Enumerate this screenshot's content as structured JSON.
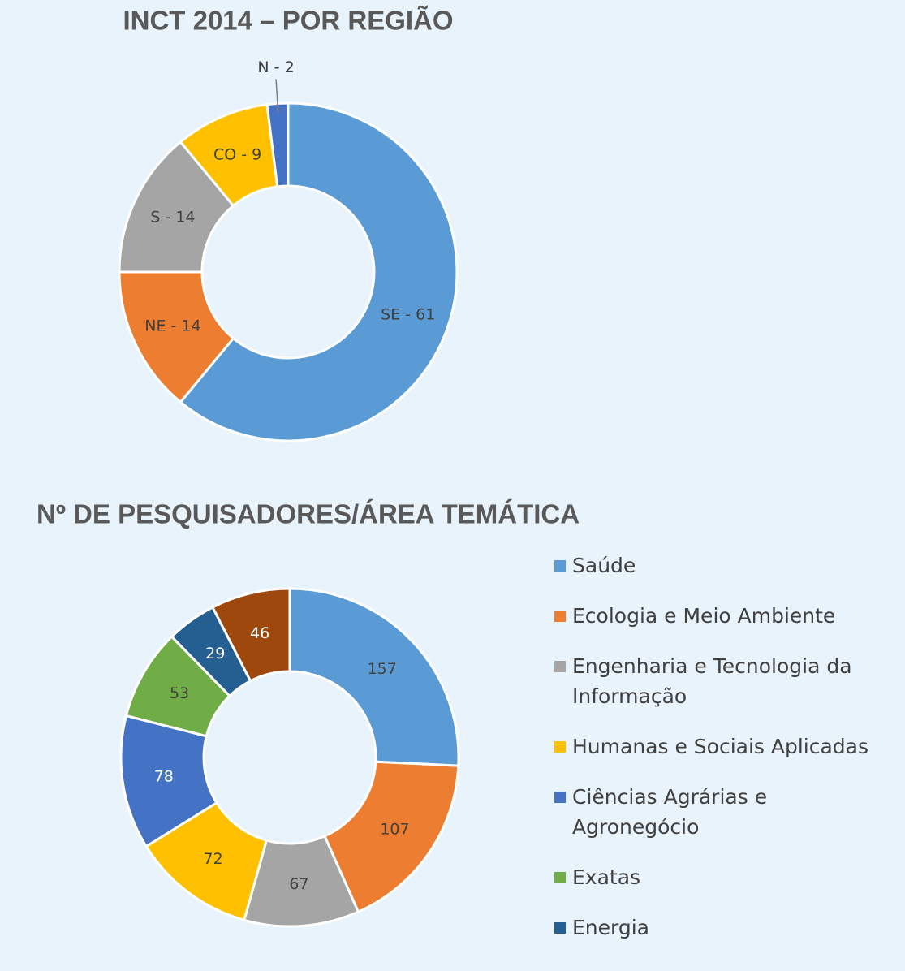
{
  "chart_data": [
    {
      "type": "donut",
      "title": "INCT 2014 – POR REGIÃO",
      "values": [
        61,
        14,
        14,
        9,
        2
      ],
      "value_labels": [
        "SE - 61",
        "NE - 14",
        "S - 14",
        "CO - 9",
        "N - 2"
      ],
      "colors": [
        "#5b9bd5",
        "#ed7d31",
        "#a5a5a5",
        "#ffc000",
        "#4472c4"
      ],
      "legend": false
    },
    {
      "type": "donut",
      "title": "Nº DE PESQUISADORES/ÁREA TEMÁTICA",
      "categories": [
        "Saúde",
        "Ecologia e Meio Ambiente",
        "Engenharia e Tecnologia da Informação",
        "Humanas e Sociais Aplicadas",
        "Ciências Agrárias e Agronegócio",
        "Exatas",
        "Energia",
        null
      ],
      "values": [
        157,
        107,
        67,
        72,
        78,
        53,
        29,
        46
      ],
      "colors": [
        "#5b9bd5",
        "#ed7d31",
        "#a5a5a5",
        "#ffc000",
        "#4472c4",
        "#70ad47",
        "#255e91",
        "#9e480e"
      ],
      "legend": "right"
    }
  ]
}
